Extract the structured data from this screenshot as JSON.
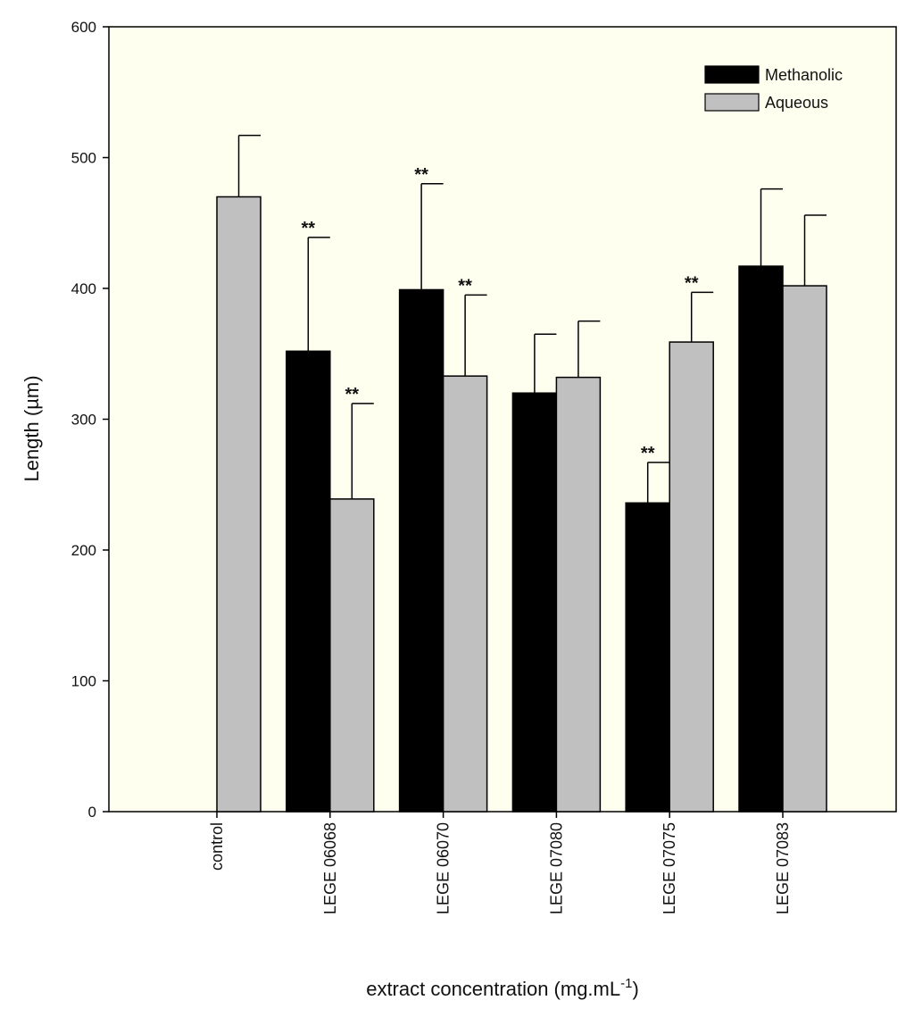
{
  "chart_data": {
    "type": "bar",
    "title": "",
    "xlabel": "extract concentration (mg.mL",
    "xlabel_superscript": "-1",
    "xlabel_suffix": ")",
    "ylabel": "Length (µm)",
    "ylim": [
      0,
      600
    ],
    "yticks": [
      0,
      100,
      200,
      300,
      400,
      500,
      600
    ],
    "grid": false,
    "legend_position": "top-right",
    "background_color": "#fffff0",
    "categories": [
      "control",
      "LEGE 06068",
      "LEGE 06070",
      "LEGE 07080",
      "LEGE 07075",
      "LEGE 07083"
    ],
    "series": [
      {
        "name": "Methanolic",
        "color": "#000000",
        "values": [
          null,
          352,
          399,
          320,
          236,
          417
        ],
        "error": [
          null,
          87,
          81,
          45,
          31,
          59
        ],
        "significance": [
          null,
          "**",
          "**",
          "",
          "**",
          ""
        ]
      },
      {
        "name": "Aqueous",
        "color": "#c0c0c0",
        "values": [
          470,
          239,
          333,
          332,
          359,
          402
        ],
        "error": [
          47,
          73,
          62,
          43,
          38,
          54
        ],
        "significance": [
          "",
          "**",
          "**",
          "",
          "**",
          ""
        ]
      }
    ]
  }
}
